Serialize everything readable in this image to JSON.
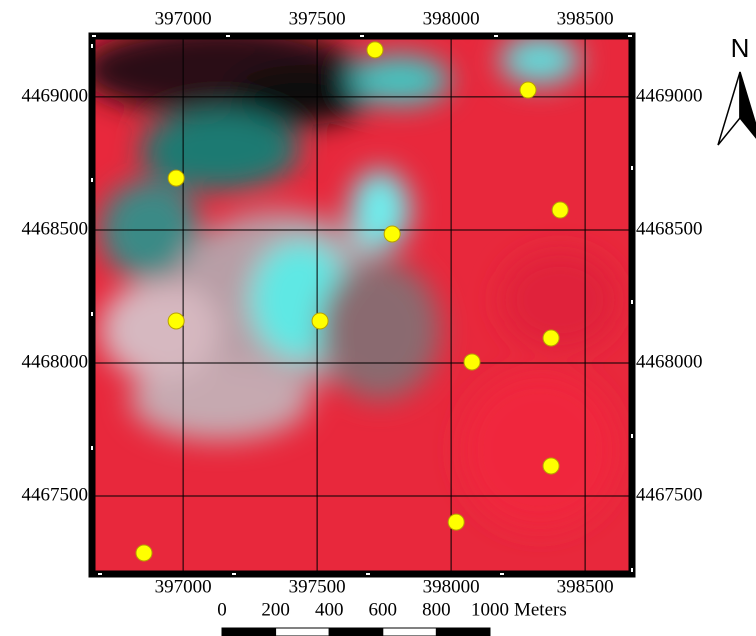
{
  "map": {
    "xlim": [
      396660,
      398675
    ],
    "ylim": [
      4467207,
      4469229
    ],
    "xticks": [
      397000,
      397500,
      398000,
      398500
    ],
    "yticks": [
      4467500,
      4468000,
      4468500,
      4469000
    ],
    "grid": true,
    "point_color": "#ffff00",
    "points": {
      "x": [
        397716,
        398287,
        396974,
        398407,
        397780,
        396974,
        397511,
        398373,
        398078,
        398373,
        398019,
        396854
      ],
      "y": [
        4469177,
        4469026,
        4468695,
        4468575,
        4468485,
        4468158,
        4468158,
        4468094,
        4468004,
        4467613,
        4467402,
        4467286
      ]
    },
    "north_label": "N",
    "scale_bar": {
      "ticks": [
        0,
        200,
        400,
        600,
        800,
        1000
      ],
      "unit": "Meters"
    }
  }
}
